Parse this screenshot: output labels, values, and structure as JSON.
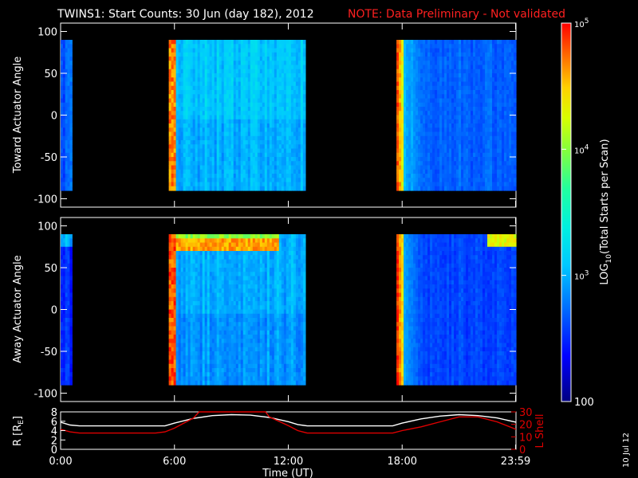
{
  "title": {
    "main": "TWINS1: Start Counts: 30 Jun (day 182), 2012",
    "note": "NOTE: Data Preliminary - Not validated"
  },
  "stamp": "10 Jul 12",
  "colorbar": {
    "label": "LOG10(Total Starts per Scan)",
    "label_parts": [
      "LOG",
      "10",
      "(Total Starts per Scan)"
    ],
    "ticks": [
      {
        "value": 100,
        "label": "100"
      },
      {
        "value": 1000,
        "label": "10^3"
      },
      {
        "value": 10000,
        "label": "10^4"
      },
      {
        "value": 100000,
        "label": "10^5"
      }
    ],
    "scale": "log",
    "range": [
      100,
      100000
    ],
    "colors": [
      "#000080",
      "#0000ff",
      "#0080ff",
      "#00e0ff",
      "#00ffa0",
      "#a0ff00",
      "#ffff00",
      "#ffa000",
      "#ff2000",
      "#e00000"
    ]
  },
  "x_axis": {
    "label": "Time (UT)",
    "ticks": [
      "0:00",
      "6:00",
      "12:00",
      "18:00",
      "23:59"
    ],
    "range_hours": [
      0,
      24
    ]
  },
  "chart_data": [
    {
      "type": "heatmap",
      "ylabel": "Toward Actuator Angle",
      "yticks": [
        100,
        50,
        0,
        -50,
        -100
      ],
      "ylim": [
        -110,
        110
      ],
      "data_extent_y": [
        -90,
        90
      ],
      "coverage_hours": [
        [
          0.0,
          0.6
        ],
        [
          5.7,
          12.9
        ],
        [
          17.7,
          24.0
        ]
      ],
      "description_values_log10": {
        "segment1": 2.7,
        "segment2_edge": 4.7,
        "segment2_body": 3.1,
        "segment3_edge": 4.8,
        "segment3_body": 2.7
      }
    },
    {
      "type": "heatmap",
      "ylabel": "Away Actuator Angle",
      "yticks": [
        100,
        50,
        0,
        -50,
        -100
      ],
      "ylim": [
        -110,
        110
      ],
      "data_extent_y": [
        -90,
        90
      ],
      "coverage_hours": [
        [
          0.0,
          0.6
        ],
        [
          5.7,
          12.9
        ],
        [
          17.7,
          24.0
        ]
      ],
      "description_values_log10": {
        "segment1": 2.5,
        "segment2_edge": 4.8,
        "segment2_top_band": 4.6,
        "segment2_body": 3.0,
        "segment3_edge": 4.9,
        "segment3_body": 2.6
      }
    },
    {
      "type": "line",
      "ylabel": "R [RE]",
      "ylabel_parts": [
        "R [R",
        "E",
        "]"
      ],
      "y2label": "L Shell",
      "yticks": [
        0,
        2,
        4,
        6,
        8
      ],
      "ylim": [
        0,
        8
      ],
      "y2ticks": [
        0,
        10,
        20,
        30
      ],
      "y2lim": [
        0,
        30
      ],
      "series": [
        {
          "name": "R",
          "color": "#ffffff",
          "x": [
            0,
            0.5,
            1,
            2,
            3,
            4,
            5,
            5.5,
            6,
            7,
            8,
            9,
            10,
            11,
            12,
            12.5,
            13,
            14,
            15,
            16,
            17,
            17.5,
            18,
            19,
            20,
            21,
            22,
            23,
            24
          ],
          "y": [
            5.8,
            5.2,
            5.0,
            5.0,
            5.0,
            5.0,
            5.0,
            5.0,
            5.6,
            6.6,
            7.2,
            7.4,
            7.3,
            6.8,
            5.9,
            5.3,
            5.0,
            5.0,
            5.0,
            5.0,
            5.0,
            5.0,
            5.6,
            6.5,
            7.1,
            7.4,
            7.2,
            6.7,
            5.8
          ]
        },
        {
          "name": "L Shell",
          "color": "#e00000",
          "x": [
            0,
            0.5,
            1,
            2,
            3,
            4,
            5,
            5.5,
            6,
            7,
            7.3,
            10.8,
            11,
            12,
            12.5,
            13,
            14,
            15,
            16,
            17,
            17.5,
            18,
            19,
            20,
            21,
            22,
            23,
            24
          ],
          "y": [
            16,
            14,
            13,
            13,
            13,
            13,
            13,
            14,
            17,
            25,
            30,
            30,
            26,
            19,
            15,
            13,
            13,
            13,
            13,
            13,
            13,
            15,
            18,
            22,
            26,
            26,
            22,
            16
          ]
        }
      ]
    }
  ]
}
